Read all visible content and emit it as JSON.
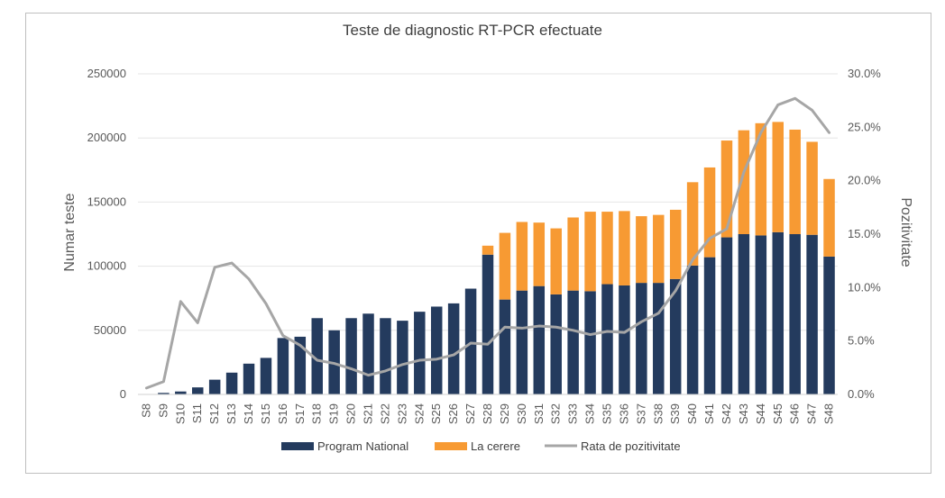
{
  "chart_data": {
    "type": "bar",
    "stacked": true,
    "title": "Teste de diagnostic RT-PCR efectuate",
    "ylabel": "Numar teste",
    "y2label": "Pozitivitate",
    "ylim": [
      0,
      250000
    ],
    "y2lim": [
      0,
      0.3
    ],
    "yticks": [
      "0",
      "50000",
      "100000",
      "150000",
      "200000",
      "250000"
    ],
    "y2ticks": [
      "0.0%",
      "5.0%",
      "10.0%",
      "15.0%",
      "20.0%",
      "25.0%",
      "30.0%"
    ],
    "categories": [
      "S8",
      "S9",
      "S10",
      "S11",
      "S12",
      "S13",
      "S14",
      "S15",
      "S16",
      "S17",
      "S18",
      "S19",
      "S20",
      "S21",
      "S22",
      "S23",
      "S24",
      "S25",
      "S26",
      "S27",
      "S28",
      "S29",
      "S30",
      "S31",
      "S32",
      "S33",
      "S34",
      "S35",
      "S36",
      "S37",
      "S38",
      "S39",
      "S40",
      "S41",
      "S42",
      "S43",
      "S44",
      "S45",
      "S46",
      "S47",
      "S48"
    ],
    "series": [
      {
        "name": "Program National",
        "color": "#243b5e",
        "axis": "left",
        "kind": "bar",
        "values": [
          300,
          1200,
          2300,
          5500,
          11500,
          17000,
          24000,
          28500,
          44000,
          45000,
          59500,
          50000,
          59500,
          63000,
          59500,
          57500,
          64500,
          68500,
          71000,
          82500,
          109000,
          74000,
          81000,
          84500,
          78000,
          81000,
          80500,
          86000,
          85000,
          87000,
          87000,
          90000,
          100500,
          107000,
          122500,
          125000,
          124000,
          126500,
          125000,
          124500,
          107500
        ]
      },
      {
        "name": "La cerere",
        "color": "#f79a33",
        "axis": "left",
        "kind": "bar",
        "values": [
          0,
          0,
          0,
          0,
          0,
          0,
          0,
          0,
          0,
          0,
          0,
          0,
          0,
          0,
          0,
          0,
          0,
          0,
          0,
          0,
          7000,
          52000,
          53500,
          49500,
          51500,
          57000,
          62000,
          56500,
          58000,
          52000,
          53000,
          54000,
          65000,
          70000,
          75500,
          81000,
          87500,
          86000,
          81500,
          72500,
          60500
        ]
      },
      {
        "name": "Rata de pozitivitate",
        "color": "#a6a6a6",
        "axis": "right",
        "kind": "line",
        "values": [
          0.006,
          0.012,
          0.087,
          0.067,
          0.119,
          0.123,
          0.108,
          0.085,
          0.055,
          0.046,
          0.032,
          0.029,
          0.024,
          0.018,
          0.022,
          0.028,
          0.032,
          0.033,
          0.037,
          0.048,
          0.047,
          0.063,
          0.062,
          0.064,
          0.063,
          0.06,
          0.056,
          0.059,
          0.058,
          0.068,
          0.076,
          0.097,
          0.126,
          0.146,
          0.155,
          0.208,
          0.245,
          0.271,
          0.277,
          0.266,
          0.245
        ]
      }
    ],
    "legend": {
      "position": "bottom",
      "entries": [
        "Program National",
        "La cerere",
        "Rata de pozitivitate"
      ]
    }
  }
}
